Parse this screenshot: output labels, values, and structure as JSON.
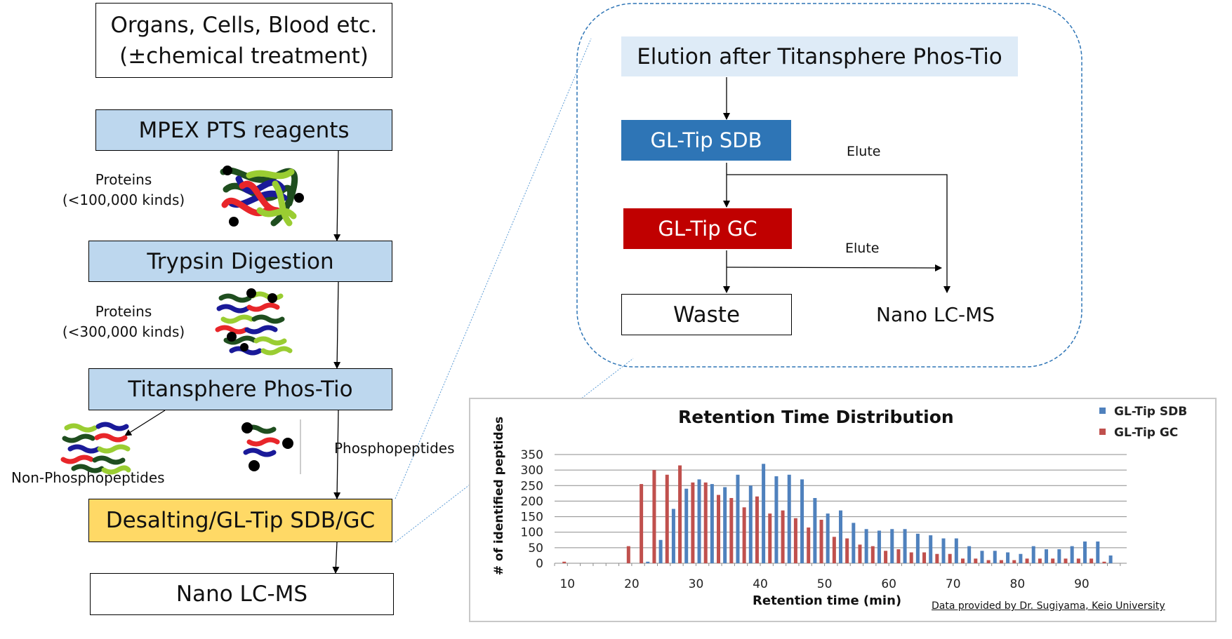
{
  "flow": {
    "sample": [
      "Organs, Cells, Blood etc.",
      "(±chemical treatment)"
    ],
    "mpex": "MPEX PTS reagents",
    "proteins1": [
      "Proteins",
      "(<100,000 kinds)"
    ],
    "trypsin": "Trypsin Digestion",
    "proteins2": [
      "Proteins",
      "(<300,000 kinds)"
    ],
    "titansphere": "Titansphere Phos-Tio",
    "non_phospho": "Non-Phosphopeptides",
    "phospho": "Phosphopeptides",
    "desalting": "Desalting/GL-Tip SDB/GC",
    "nano": "Nano LC-MS"
  },
  "detail": {
    "elution": "Elution after Titansphere Phos-Tio",
    "sdb": "GL-Tip SDB",
    "gc": "GL-Tip GC",
    "elute1": "Elute",
    "elute2": "Elute",
    "waste": "Waste",
    "nano": "Nano LC-MS"
  },
  "colors": {
    "light_blue": "#bdd7ee",
    "elution_bg": "#deebf7",
    "sdb_blue": "#2e75b6",
    "gc_red": "#c00000",
    "desalting_yellow": "#ffd966",
    "series_sdb": "#4f81bd",
    "series_gc": "#c0504d"
  },
  "chart_data": {
    "type": "bar",
    "title": "Retention Time Distribution",
    "xlabel": "Retention time (min)",
    "ylabel": "# of identified peptides",
    "xlim": [
      8,
      97
    ],
    "ylim": [
      0,
      350
    ],
    "xticks": [
      10,
      20,
      30,
      40,
      50,
      60,
      70,
      80,
      90
    ],
    "yticks": [
      0,
      50,
      100,
      150,
      200,
      250,
      300,
      350
    ],
    "grid": true,
    "legend": "top-right",
    "note": "Data provided by Dr. Sugiyama, Keio University",
    "x": [
      10,
      12,
      14,
      16,
      18,
      20,
      22,
      24,
      26,
      28,
      30,
      32,
      34,
      36,
      38,
      40,
      42,
      44,
      46,
      48,
      50,
      52,
      54,
      56,
      58,
      60,
      62,
      64,
      66,
      68,
      70,
      72,
      74,
      76,
      78,
      80,
      82,
      84,
      86,
      88,
      90,
      92,
      94
    ],
    "series": [
      {
        "name": "GL-Tip SDB",
        "values": [
          0,
          0,
          0,
          0,
          0,
          0,
          5,
          75,
          175,
          240,
          270,
          255,
          245,
          285,
          250,
          320,
          280,
          285,
          270,
          210,
          160,
          170,
          130,
          110,
          105,
          110,
          110,
          95,
          90,
          80,
          80,
          55,
          40,
          40,
          35,
          30,
          55,
          45,
          45,
          55,
          70,
          70,
          25
        ]
      },
      {
        "name": "GL-Tip GC",
        "values": [
          5,
          0,
          0,
          0,
          0,
          55,
          255,
          300,
          285,
          315,
          260,
          260,
          220,
          210,
          180,
          215,
          160,
          170,
          145,
          115,
          140,
          85,
          80,
          60,
          55,
          40,
          45,
          35,
          35,
          30,
          30,
          15,
          15,
          10,
          10,
          10,
          15,
          15,
          15,
          15,
          15,
          15,
          5
        ]
      }
    ]
  }
}
